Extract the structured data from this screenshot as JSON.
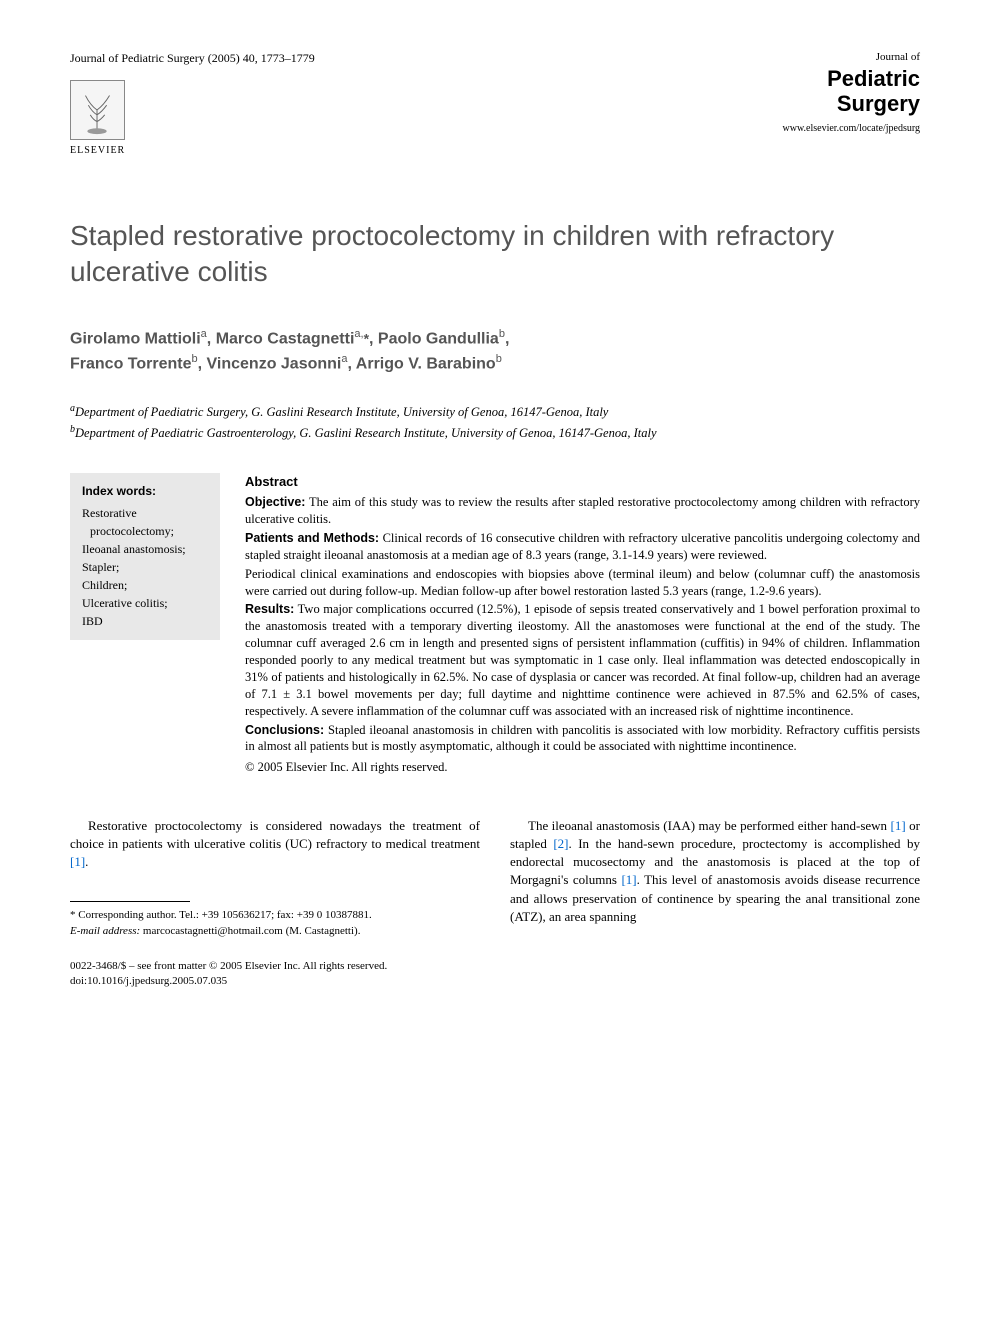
{
  "header": {
    "citation": "Journal of Pediatric Surgery (2005) 40, 1773–1779",
    "publisher_name": "ELSEVIER",
    "journal_label": "Journal of",
    "journal_name_1": "Pediatric",
    "journal_name_2": "Surgery",
    "journal_url": "www.elsevier.com/locate/jpedsurg"
  },
  "title": "Stapled restorative proctocolectomy in children with refractory ulcerative colitis",
  "authors_html": "Girolamo Mattioli<sup>a</sup>, Marco Castagnetti<sup>a,</sup><span class='corresp'>*</span>, Paolo Gandullia<sup>b</sup>,<br>Franco Torrente<sup>b</sup>, Vincenzo Jasonni<sup>a</sup>, Arrigo V. Barabino<sup>b</sup>",
  "affiliations": [
    {
      "sup": "a",
      "text": "Department of Paediatric Surgery, G. Gaslini Research Institute, University of Genoa, 16147-Genoa, Italy"
    },
    {
      "sup": "b",
      "text": "Department of Paediatric Gastroenterology, G. Gaslini Research Institute, University of Genoa, 16147-Genoa, Italy"
    }
  ],
  "index_words": {
    "title": "Index words:",
    "items": [
      "Restorative proctocolectomy;",
      "Ileoanal anastomosis;",
      "Stapler;",
      "Children;",
      "Ulcerative colitis;",
      "IBD"
    ]
  },
  "abstract": {
    "heading": "Abstract",
    "sections": [
      {
        "label": "Objective:",
        "text": " The aim of this study was to review the results after stapled restorative proctocolectomy among children with refractory ulcerative colitis."
      },
      {
        "label": "Patients and Methods:",
        "text": " Clinical records of 16 consecutive children with refractory ulcerative pancolitis undergoing colectomy and stapled straight ileoanal anastomosis at a median age of 8.3 years (range, 3.1-14.9 years) were reviewed."
      },
      {
        "label": "",
        "text": "Periodical clinical examinations and endoscopies with biopsies above (terminal ileum) and below (columnar cuff) the anastomosis were carried out during follow-up. Median follow-up after bowel restoration lasted 5.3 years (range, 1.2-9.6 years)."
      },
      {
        "label": "Results:",
        "text": " Two major complications occurred (12.5%), 1 episode of sepsis treated conservatively and 1 bowel perforation proximal to the anastomosis treated with a temporary diverting ileostomy. All the anastomoses were functional at the end of the study. The columnar cuff averaged 2.6 cm in length and presented signs of persistent inflammation (cuffitis) in 94% of children. Inflammation responded poorly to any medical treatment but was symptomatic in 1 case only. Ileal inflammation was detected endoscopically in 31% of patients and histologically in 62.5%. No case of dysplasia or cancer was recorded. At final follow-up, children had an average of 7.1 ± 3.1 bowel movements per day; full daytime and nighttime continence were achieved in 87.5% and 62.5% of cases, respectively. A severe inflammation of the columnar cuff was associated with an increased risk of nighttime incontinence."
      },
      {
        "label": "Conclusions:",
        "text": " Stapled ileoanal anastomosis in children with pancolitis is associated with low morbidity. Refractory cuffitis persists in almost all patients but is mostly asymptomatic, although it could be associated with nighttime incontinence."
      }
    ],
    "copyright": "© 2005 Elsevier Inc. All rights reserved."
  },
  "body": {
    "left_para": "Restorative proctocolectomy is considered nowadays the treatment of choice in patients with ulcerative colitis (UC) refractory to medical treatment ",
    "left_ref": "[1]",
    "left_end": ".",
    "right_para_1": "The ileoanal anastomosis (IAA) may be performed either hand-sewn ",
    "right_ref_1": "[1]",
    "right_mid_1": " or stapled ",
    "right_ref_2": "[2]",
    "right_mid_2": ". In the hand-sewn procedure, proctectomy is accomplished by endorectal mucosectomy and the anastomosis is placed at the top of Morgagni's columns ",
    "right_ref_3": "[1]",
    "right_end": ". This level of anastomosis avoids disease recurrence and allows preservation of continence by spearing the anal transitional zone (ATZ), an area spanning"
  },
  "footnote": {
    "corresp": "* Corresponding author. Tel.: +39 105636217; fax: +39 0 10387881.",
    "email_label": "E-mail address:",
    "email": "marcocastagnetti@hotmail.com (M. Castagnetti)."
  },
  "bottom": {
    "issn": "0022-3468/$ – see front matter © 2005 Elsevier Inc. All rights reserved.",
    "doi": "doi:10.1016/j.jpedsurg.2005.07.035"
  },
  "colors": {
    "title_color": "#555555",
    "ref_link": "#0066cc",
    "index_bg": "#e8e8e8"
  }
}
